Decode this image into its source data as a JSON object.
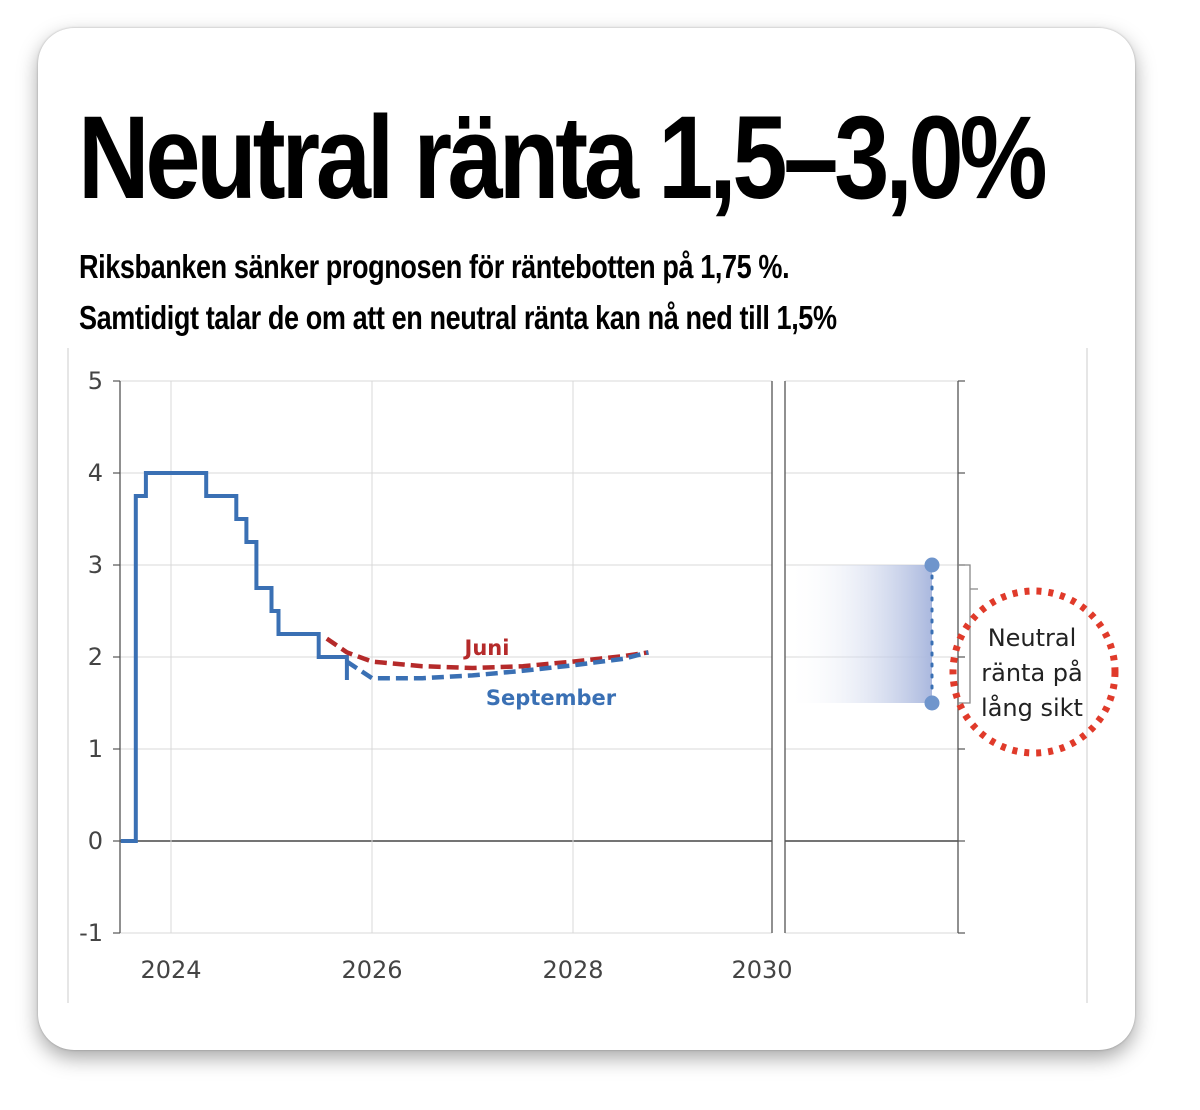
{
  "header": {
    "title": "Neutral ränta 1,5–3,0%",
    "subtitle_line1": "Riksbanken sänker prognosen för räntebotten på 1,75 %.",
    "subtitle_line2": "Samtidigt talar de om att en neutral ränta kan nå ned till 1,5%"
  },
  "chart_data": {
    "type": "line",
    "title": "",
    "xlabel": "",
    "ylabel": "",
    "xlim": [
      2023.5,
      2032.0
    ],
    "ylim": [
      -1,
      5
    ],
    "x_ticks": [
      "2024",
      "2026",
      "2028",
      "2030"
    ],
    "y_ticks": [
      "5",
      "4",
      "3",
      "2",
      "1",
      "0",
      "-1"
    ],
    "grid": true,
    "colors": {
      "blue": "#3a70b4",
      "red": "#b52a2a",
      "band": "#aab8de",
      "circle": "#e03a2a"
    },
    "series": [
      {
        "name": "",
        "style": "solid",
        "color": "#3a70b4",
        "points": [
          [
            2023.5,
            0.0
          ],
          [
            2023.65,
            0.0
          ],
          [
            2023.65,
            3.75
          ],
          [
            2023.75,
            3.75
          ],
          [
            2023.75,
            4.0
          ],
          [
            2024.35,
            4.0
          ],
          [
            2024.35,
            3.75
          ],
          [
            2024.65,
            3.75
          ],
          [
            2024.65,
            3.5
          ],
          [
            2024.75,
            3.5
          ],
          [
            2024.75,
            3.25
          ],
          [
            2024.85,
            3.25
          ],
          [
            2024.85,
            2.75
          ],
          [
            2025.0,
            2.75
          ],
          [
            2025.0,
            2.5
          ],
          [
            2025.07,
            2.5
          ],
          [
            2025.07,
            2.25
          ],
          [
            2025.47,
            2.25
          ],
          [
            2025.47,
            2.0
          ],
          [
            2025.75,
            2.0
          ],
          [
            2025.75,
            1.75
          ]
        ]
      },
      {
        "name": "Juni",
        "style": "dashed",
        "color": "#b52a2a",
        "points": [
          [
            2025.55,
            2.2
          ],
          [
            2025.75,
            2.05
          ],
          [
            2026.0,
            1.95
          ],
          [
            2026.5,
            1.9
          ],
          [
            2027.0,
            1.88
          ],
          [
            2027.5,
            1.9
          ],
          [
            2028.0,
            1.95
          ],
          [
            2028.5,
            2.01
          ],
          [
            2028.75,
            2.05
          ]
        ]
      },
      {
        "name": "September",
        "style": "dashed",
        "color": "#3a70b4",
        "points": [
          [
            2025.75,
            1.95
          ],
          [
            2026.0,
            1.77
          ],
          [
            2026.5,
            1.77
          ],
          [
            2027.0,
            1.8
          ],
          [
            2027.5,
            1.85
          ],
          [
            2028.0,
            1.91
          ],
          [
            2028.5,
            1.98
          ],
          [
            2028.75,
            2.05
          ]
        ]
      }
    ],
    "neutral_rate": {
      "label": "Neutral ränta på lång sikt",
      "label_lines": [
        "Neutral",
        "ränta på",
        "lång sikt"
      ],
      "low": 1.5,
      "high": 3.0
    }
  }
}
